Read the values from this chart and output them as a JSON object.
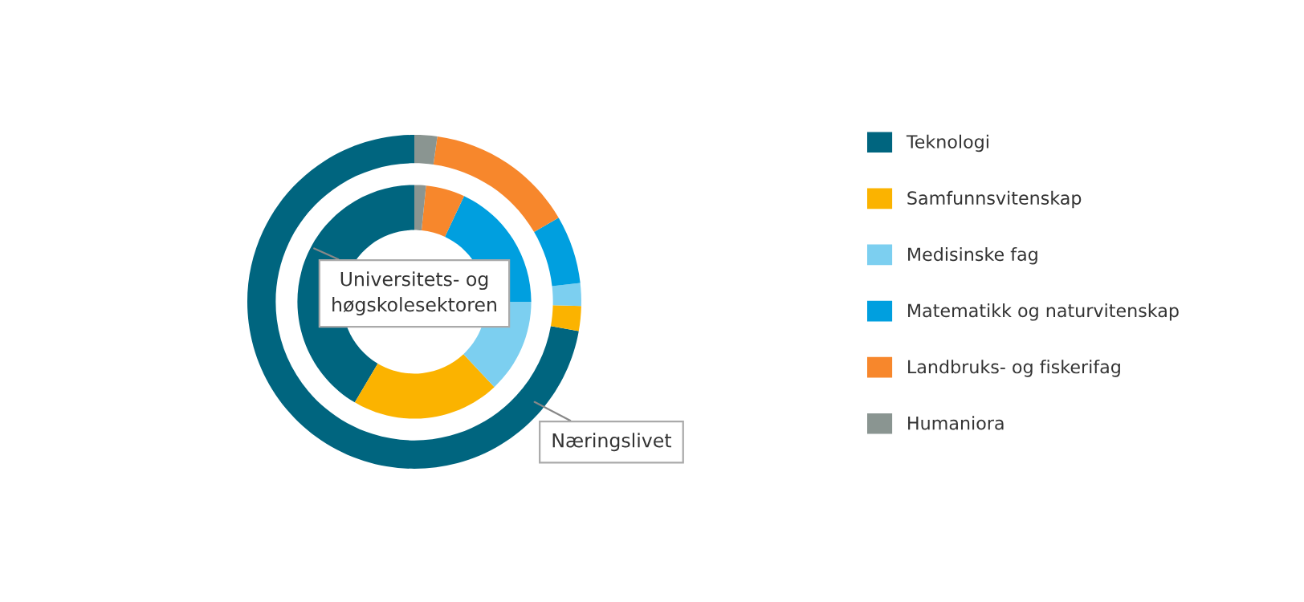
{
  "chart_data": {
    "type": "donut",
    "categories": [
      "Teknologi",
      "Samfunnsvitenskap",
      "Medisinske fag",
      "Matematikk og naturvitenskap",
      "Landbruks- og fiskerifag",
      "Humaniora"
    ],
    "colors": [
      "#00657f",
      "#fbb300",
      "#7ccff0",
      "#009fdf",
      "#f7872c",
      "#8a9591"
    ],
    "series": [
      {
        "name": "Næringslivet",
        "values": [
          72.2,
          2.4,
          2.2,
          6.6,
          14.4,
          2.2
        ]
      },
      {
        "name": "Universitets- og høgskolesektoren",
        "values": [
          41.5,
          20.5,
          13,
          18,
          5.4,
          1.6
        ]
      }
    ],
    "legend": "right"
  }
}
